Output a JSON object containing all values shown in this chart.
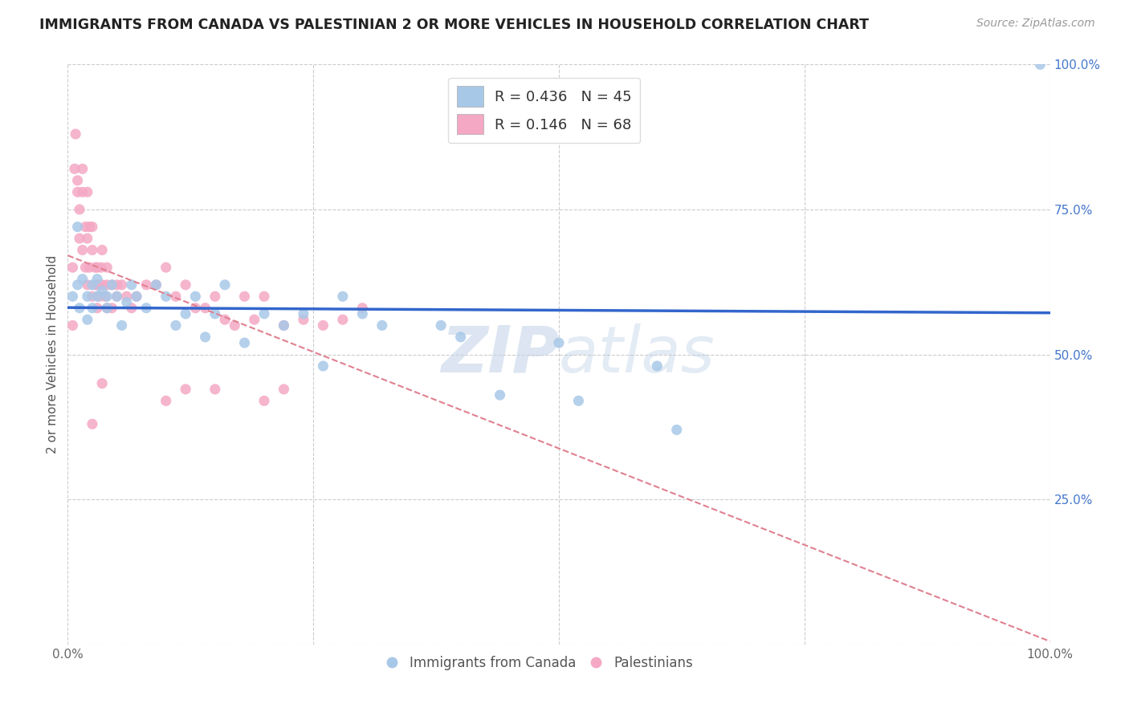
{
  "title": "IMMIGRANTS FROM CANADA VS PALESTINIAN 2 OR MORE VEHICLES IN HOUSEHOLD CORRELATION CHART",
  "source": "Source: ZipAtlas.com",
  "ylabel": "2 or more Vehicles in Household",
  "xlim": [
    0.0,
    1.0
  ],
  "ylim": [
    0.0,
    1.0
  ],
  "xtick_positions": [
    0.0,
    0.25,
    0.5,
    0.75,
    1.0
  ],
  "xticklabels": [
    "0.0%",
    "",
    "",
    "",
    "100.0%"
  ],
  "ytick_right_positions": [
    0.25,
    0.5,
    0.75,
    1.0
  ],
  "ytick_right_labels": [
    "25.0%",
    "50.0%",
    "75.0%",
    "100.0%"
  ],
  "watermark_zip": "ZIP",
  "watermark_atlas": "atlas",
  "legend_r_blue": "R = 0.436",
  "legend_n_blue": "N = 45",
  "legend_r_pink": "R = 0.146",
  "legend_n_pink": "N = 68",
  "blue_scatter_color": "#a8c8e8",
  "pink_scatter_color": "#f4a8c4",
  "blue_line_color": "#3366cc",
  "pink_line_color": "#e08090",
  "grid_color": "#cccccc",
  "right_tick_color": "#4477cc",
  "canada_x": [
    0.005,
    0.01,
    0.01,
    0.012,
    0.015,
    0.02,
    0.02,
    0.025,
    0.025,
    0.03,
    0.03,
    0.035,
    0.04,
    0.04,
    0.045,
    0.05,
    0.055,
    0.06,
    0.065,
    0.07,
    0.08,
    0.09,
    0.1,
    0.11,
    0.12,
    0.13,
    0.14,
    0.15,
    0.16,
    0.18,
    0.2,
    0.22,
    0.24,
    0.26,
    0.28,
    0.3,
    0.32,
    0.38,
    0.4,
    0.44,
    0.5,
    0.52,
    0.6,
    0.62,
    0.99
  ],
  "canada_y": [
    0.6,
    0.72,
    0.62,
    0.58,
    0.63,
    0.6,
    0.56,
    0.62,
    0.58,
    0.6,
    0.63,
    0.61,
    0.6,
    0.58,
    0.62,
    0.6,
    0.55,
    0.59,
    0.62,
    0.6,
    0.58,
    0.62,
    0.6,
    0.55,
    0.57,
    0.6,
    0.53,
    0.57,
    0.62,
    0.52,
    0.57,
    0.55,
    0.57,
    0.48,
    0.6,
    0.57,
    0.55,
    0.55,
    0.53,
    0.43,
    0.52,
    0.42,
    0.48,
    0.37,
    1.0
  ],
  "palestinian_x": [
    0.005,
    0.005,
    0.007,
    0.008,
    0.01,
    0.01,
    0.012,
    0.012,
    0.015,
    0.015,
    0.015,
    0.018,
    0.018,
    0.02,
    0.02,
    0.02,
    0.022,
    0.022,
    0.025,
    0.025,
    0.025,
    0.028,
    0.028,
    0.03,
    0.03,
    0.03,
    0.032,
    0.032,
    0.034,
    0.035,
    0.035,
    0.038,
    0.04,
    0.04,
    0.04,
    0.045,
    0.045,
    0.05,
    0.05,
    0.055,
    0.06,
    0.065,
    0.07,
    0.08,
    0.09,
    0.1,
    0.11,
    0.12,
    0.13,
    0.14,
    0.15,
    0.16,
    0.17,
    0.18,
    0.19,
    0.2,
    0.22,
    0.24,
    0.26,
    0.28,
    0.3,
    0.12,
    0.1,
    0.15,
    0.2,
    0.22,
    0.035,
    0.025
  ],
  "palestinian_y": [
    0.65,
    0.55,
    0.82,
    0.88,
    0.8,
    0.78,
    0.75,
    0.7,
    0.82,
    0.78,
    0.68,
    0.72,
    0.65,
    0.78,
    0.7,
    0.62,
    0.72,
    0.65,
    0.68,
    0.72,
    0.6,
    0.65,
    0.62,
    0.62,
    0.65,
    0.58,
    0.6,
    0.62,
    0.65,
    0.68,
    0.62,
    0.6,
    0.65,
    0.62,
    0.58,
    0.62,
    0.58,
    0.6,
    0.62,
    0.62,
    0.6,
    0.58,
    0.6,
    0.62,
    0.62,
    0.65,
    0.6,
    0.62,
    0.58,
    0.58,
    0.6,
    0.56,
    0.55,
    0.6,
    0.56,
    0.6,
    0.55,
    0.56,
    0.55,
    0.56,
    0.58,
    0.44,
    0.42,
    0.44,
    0.42,
    0.44,
    0.45,
    0.38
  ]
}
